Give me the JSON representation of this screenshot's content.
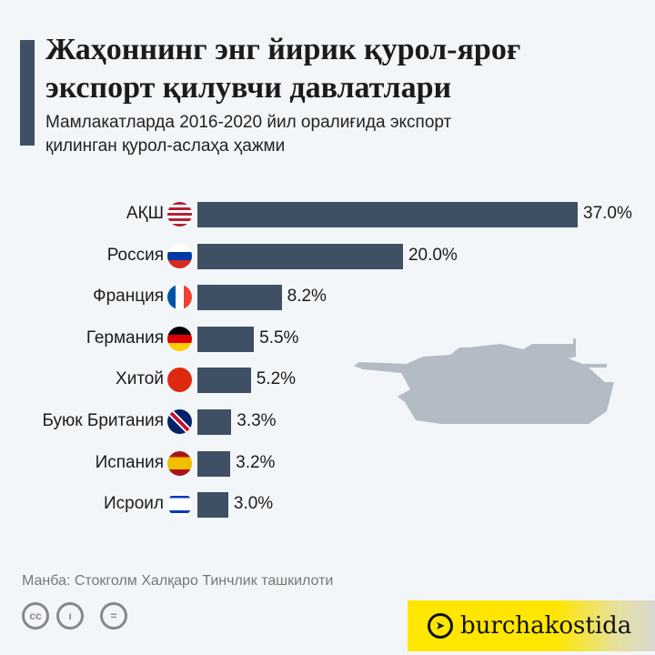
{
  "title": "Жаҳоннинг энг йирик қурол-яроғ экспорт қилувчи давлатлари",
  "subtitle_line1": "Мамлакатларда 2016-2020 йил оралиғида экспорт",
  "subtitle_line2": "қилинган қурол-аслаҳа ҳажми",
  "chart_data": {
    "type": "bar",
    "orientation": "horizontal",
    "title": "Жаҳоннинг энг йирик қурол-яроғ экспорт қилувчи давлатлари",
    "categories": [
      "АҚШ",
      "Россия",
      "Франция",
      "Германия",
      "Хитой",
      "Буюк Британия",
      "Испания",
      "Исроил"
    ],
    "values": [
      37.0,
      20.0,
      8.2,
      5.5,
      5.2,
      3.3,
      3.2,
      3.0
    ],
    "value_labels": [
      "37.0%",
      "20.0%",
      "8.2%",
      "5.5%",
      "5.2%",
      "3.3%",
      "3.2%",
      "3.0%"
    ],
    "unit": "%",
    "bar_color": "#3f5064"
  },
  "source": "Манба: Стокголм Халқаро Тинчлик ташкилоти",
  "license_icons": [
    "cc-icon",
    "by-icon",
    "nd-icon"
  ],
  "brand": "burchakostida"
}
